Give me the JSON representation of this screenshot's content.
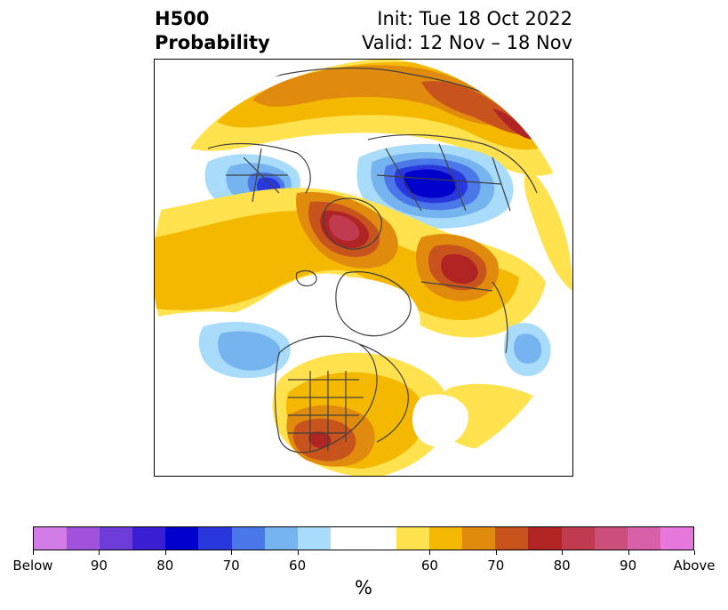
{
  "title": {
    "left_line1": "H500",
    "left_line2": "Probability",
    "right_line1": "Init: Tue 18 Oct 2022",
    "right_line2": "Valid: 12 Nov – 18 Nov"
  },
  "map": {
    "projection": "polar stereographic (north pole)",
    "colors": {
      "above_60": "#ffe24d",
      "above_65": "#f5b800",
      "above_70": "#e08a0e",
      "above_75": "#c8531c",
      "above_80": "#b02424",
      "above_85": "#c03a50",
      "below_60": "#a8dcfa",
      "below_65": "#76b4f0",
      "below_70": "#4a78e8",
      "below_75": "#2838dc",
      "below_80": "#0000cc",
      "coast": "#404040"
    }
  },
  "colorbar": {
    "colors": [
      "#d37ce8",
      "#a052dc",
      "#6e3cd8",
      "#3a1ed4",
      "#0000cc",
      "#2838dc",
      "#4a78e8",
      "#76b4f0",
      "#a8dcfa",
      "#ffffff",
      "#ffffff",
      "#ffe24d",
      "#f5b800",
      "#e08a0e",
      "#c8531c",
      "#b02424",
      "#c03a50",
      "#cc4e7a",
      "#d860a8",
      "#e678dc"
    ],
    "tick_labels": [
      "Below",
      "90",
      "80",
      "70",
      "60",
      "60",
      "70",
      "80",
      "90",
      "Above"
    ],
    "unit": "%"
  }
}
